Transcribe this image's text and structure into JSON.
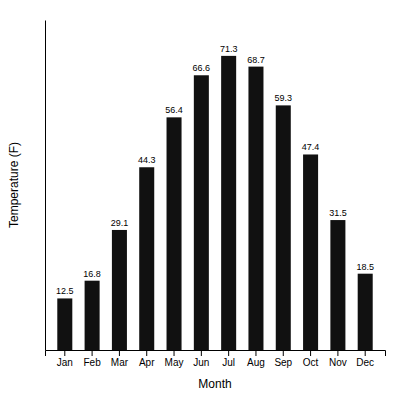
{
  "chart_data": {
    "type": "bar",
    "categories": [
      "Jan",
      "Feb",
      "Mar",
      "Apr",
      "May",
      "Jun",
      "Jul",
      "Aug",
      "Sep",
      "Oct",
      "Nov",
      "Dec"
    ],
    "values": [
      12.5,
      16.8,
      29.1,
      44.3,
      56.4,
      66.6,
      71.3,
      68.7,
      59.3,
      47.4,
      31.5,
      18.5
    ],
    "color": "#111111",
    "x_label": "Month",
    "y_label": "Temperature (F)",
    "ylim": [
      0,
      80
    ],
    "grid": false,
    "data_labels": true,
    "tick_labels": "x"
  }
}
